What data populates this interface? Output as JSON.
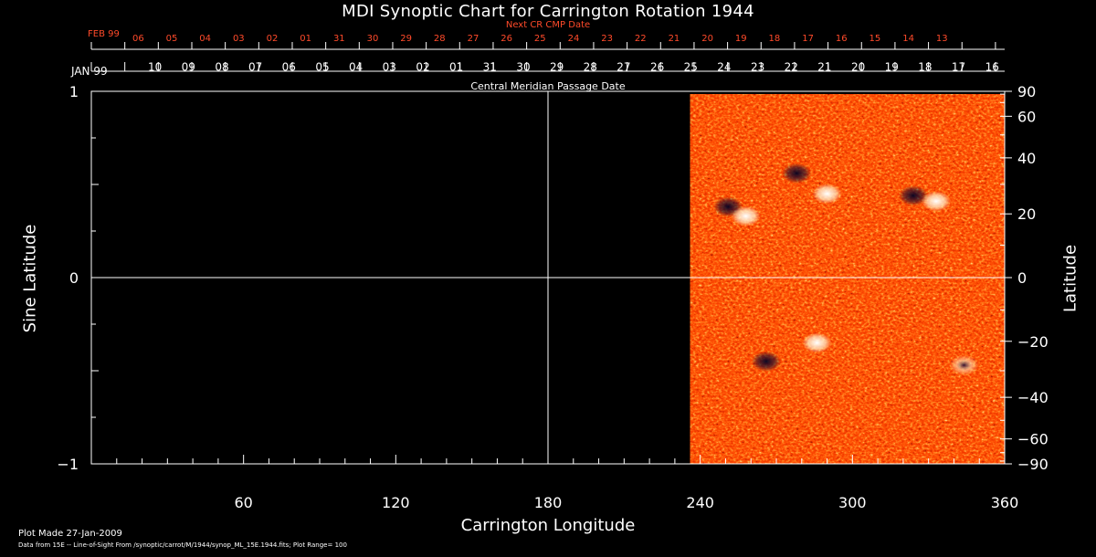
{
  "header": {
    "title": "MDI Synoptic Chart for Carrington Rotation 1944",
    "next_cmp_label": "Next CR CMP Date",
    "next_month_label": "FEB 99",
    "current_month_label": "JAN 99",
    "cmp_axis_label": "Central Meridian Passage Date"
  },
  "footer": {
    "plot_made": "Plot Made 27-Jan-2009",
    "data_source": "Data from 15E -- Line-of-Sight From /synoptic/carrot/M/1944/synop_ML_15E.1944.fits; Plot Range= 100"
  },
  "chart_data": {
    "type": "heatmap",
    "title": "MDI Synoptic Chart for Carrington Rotation 1944",
    "xlabel": "Carrington Longitude",
    "ylabel": "Sine Latitude",
    "ylabel_right": "Latitude",
    "xlim": [
      0,
      360
    ],
    "ylim": [
      -1,
      1
    ],
    "x_ticks": [
      "60",
      "120",
      "180",
      "240",
      "300",
      "360"
    ],
    "x_tick_values": [
      60,
      120,
      180,
      240,
      300,
      360
    ],
    "y_ticks": [
      "1",
      "0",
      "−1"
    ],
    "y_tick_values": [
      1,
      0,
      -1
    ],
    "right_ticks": [
      "90",
      "60",
      "40",
      "20",
      "0",
      "−20",
      "−40",
      "−60",
      "−90"
    ],
    "right_tick_values": [
      90,
      60,
      40,
      20,
      0,
      -20,
      -40,
      -60,
      -90
    ],
    "grid_lines": {
      "vertical_at": 180,
      "horizontal_at": 0
    },
    "data_coverage_longitude": [
      236,
      360
    ],
    "plot_range": 100,
    "colormap": [
      "#000033",
      "#8a1800",
      "#ff4a00",
      "#ffb050",
      "#ffffff"
    ],
    "cmp_next_dates": [
      "06",
      "05",
      "04",
      "03",
      "02",
      "01",
      "31",
      "30",
      "29",
      "28",
      "27",
      "26",
      "25",
      "24",
      "23",
      "22",
      "21",
      "20",
      "19",
      "18",
      "17",
      "16",
      "15",
      "14",
      "13"
    ],
    "cmp_dates": [
      "10",
      "09",
      "08",
      "07",
      "06",
      "05",
      "04",
      "03",
      "02",
      "01",
      "31",
      "30",
      "29",
      "28",
      "27",
      "26",
      "25",
      "24",
      "23",
      "22",
      "21",
      "20",
      "19",
      "18",
      "17",
      "16"
    ],
    "active_regions": [
      {
        "lon": 251,
        "lat_sin": 0.38,
        "polarity": "negative"
      },
      {
        "lon": 258,
        "lat_sin": 0.33,
        "polarity": "positive"
      },
      {
        "lon": 278,
        "lat_sin": 0.56,
        "polarity": "negative"
      },
      {
        "lon": 290,
        "lat_sin": 0.45,
        "polarity": "positive"
      },
      {
        "lon": 324,
        "lat_sin": 0.44,
        "polarity": "negative"
      },
      {
        "lon": 333,
        "lat_sin": 0.41,
        "polarity": "positive"
      },
      {
        "lon": 266,
        "lat_sin": -0.45,
        "polarity": "negative"
      },
      {
        "lon": 286,
        "lat_sin": -0.35,
        "polarity": "positive"
      },
      {
        "lon": 344,
        "lat_sin": -0.47,
        "polarity": "mixed"
      }
    ],
    "colors": {
      "background": "#000000",
      "axes": "#ffffff",
      "accent_red": "#ff4a2a"
    }
  }
}
